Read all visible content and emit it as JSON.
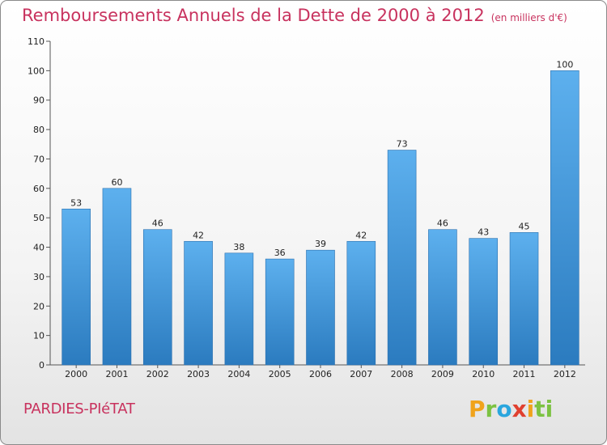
{
  "header": {
    "title": "Remboursements Annuels de la Dette de 2000 à 2012",
    "unit": "(en milliers d'€)"
  },
  "footer": {
    "commune": "PARDIES-PIéTAT",
    "logo": [
      "P",
      "r",
      "o",
      "x",
      "i",
      "ti"
    ]
  },
  "colors": {
    "bar": "#3d92d6",
    "title": "#c8325e"
  },
  "chart_data": {
    "type": "bar",
    "title": "Remboursements Annuels de la Dette de 2000 à 2012",
    "subtitle": "(en milliers d'€)",
    "categories": [
      "2000",
      "2001",
      "2002",
      "2003",
      "2004",
      "2005",
      "2006",
      "2007",
      "2008",
      "2009",
      "2010",
      "2011",
      "2012"
    ],
    "values": [
      53,
      60,
      46,
      42,
      38,
      36,
      39,
      42,
      73,
      46,
      43,
      45,
      100
    ],
    "ylim": [
      0,
      110
    ],
    "yticks": [
      0,
      10,
      20,
      30,
      40,
      50,
      60,
      70,
      80,
      90,
      100,
      110
    ],
    "xlabel": "",
    "ylabel": "",
    "grid": false,
    "legend": "none"
  }
}
